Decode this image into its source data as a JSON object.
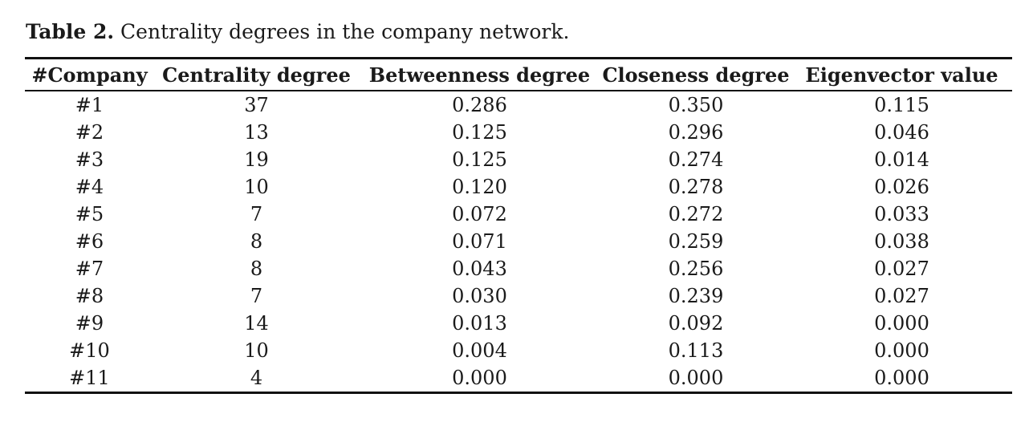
{
  "caption": {
    "label": "Table 2.",
    "text": " Centrality degrees in the company network."
  },
  "table": {
    "headers": [
      "#Company",
      "Centrality degree",
      "Betweenness degree",
      "Closeness degree",
      "Eigenvector value"
    ],
    "rows": [
      [
        "#1",
        "37",
        "0.286",
        "0.350",
        "0.115"
      ],
      [
        "#2",
        "13",
        "0.125",
        "0.296",
        "0.046"
      ],
      [
        "#3",
        "19",
        "0.125",
        "0.274",
        "0.014"
      ],
      [
        "#4",
        "10",
        "0.120",
        "0.278",
        "0.026"
      ],
      [
        "#5",
        "7",
        "0.072",
        "0.272",
        "0.033"
      ],
      [
        "#6",
        "8",
        "0.071",
        "0.259",
        "0.038"
      ],
      [
        "#7",
        "8",
        "0.043",
        "0.256",
        "0.027"
      ],
      [
        "#8",
        "7",
        "0.030",
        "0.239",
        "0.027"
      ],
      [
        "#9",
        "14",
        "0.013",
        "0.092",
        "0.000"
      ],
      [
        "#10",
        "10",
        "0.004",
        "0.113",
        "0.000"
      ],
      [
        "#11",
        "4",
        "0.000",
        "0.000",
        "0.000"
      ]
    ]
  }
}
